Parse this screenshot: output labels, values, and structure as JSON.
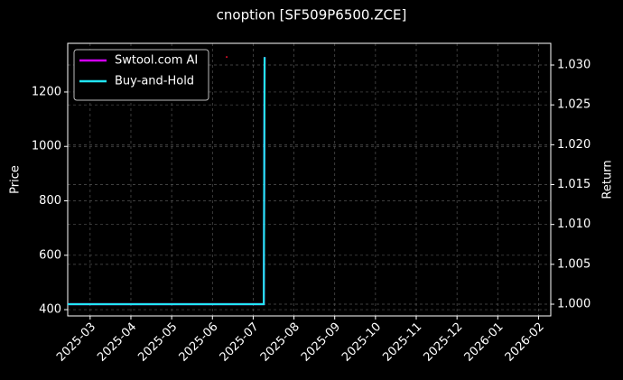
{
  "chart_data": {
    "type": "line",
    "title": "cnoption [SF509P6500.ZCE]",
    "y_label": "Price",
    "y2_label": "Return",
    "xlim": [
      -0.55,
      11.3
    ],
    "xticks": [
      {
        "value": 0,
        "label": "2025-03"
      },
      {
        "value": 1,
        "label": "2025-04"
      },
      {
        "value": 2,
        "label": "2025-05"
      },
      {
        "value": 3,
        "label": "2025-06"
      },
      {
        "value": 4,
        "label": "2025-07"
      },
      {
        "value": 5,
        "label": "2025-08"
      },
      {
        "value": 6,
        "label": "2025-09"
      },
      {
        "value": 7,
        "label": "2025-10"
      },
      {
        "value": 8,
        "label": "2025-11"
      },
      {
        "value": 9,
        "label": "2025-12"
      },
      {
        "value": 10,
        "label": "2026-01"
      },
      {
        "value": 11,
        "label": "2026-02"
      }
    ],
    "ylim": [
      377,
      1379
    ],
    "yticks": [
      400,
      600,
      800,
      1000,
      1200
    ],
    "y2lim": [
      0.99853,
      1.03272
    ],
    "y2ticks": [
      {
        "value": 1.0,
        "label": "1.000"
      },
      {
        "value": 1.005,
        "label": "1.005"
      },
      {
        "value": 1.01,
        "label": "1.010"
      },
      {
        "value": 1.015,
        "label": "1.015"
      },
      {
        "value": 1.02,
        "label": "1.020"
      },
      {
        "value": 1.025,
        "label": "1.025"
      },
      {
        "value": 1.03,
        "label": "1.030"
      }
    ],
    "grid": true,
    "legend": "upper left",
    "series": [
      {
        "name": "Swtool.com AI",
        "color": "#d400ff",
        "axis": "y2",
        "x": [
          -0.55,
          4.26,
          4.28
        ],
        "values": [
          1.0,
          1.0,
          1.031
        ]
      },
      {
        "name": "Buy-and-Hold",
        "color": "#22e5f5",
        "axis": "y2",
        "x": [
          -0.55,
          4.26,
          4.28
        ],
        "values": [
          1.0,
          1.0,
          1.031
        ]
      },
      {
        "color": "#e0102a",
        "axis": "y",
        "style": "point",
        "x": [
          3.35
        ],
        "values": [
          1329
        ]
      }
    ]
  }
}
